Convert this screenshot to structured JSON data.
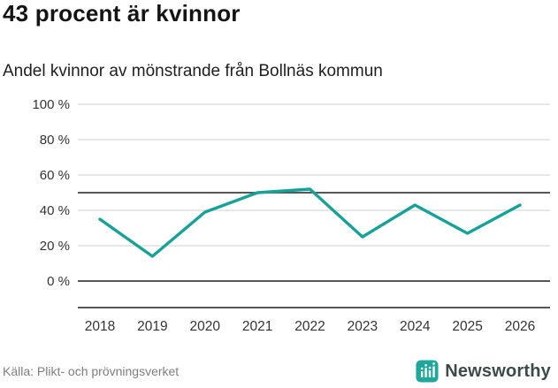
{
  "chart_data": {
    "type": "line",
    "title": "43 procent är kvinnor",
    "subtitle": "Andel kvinnor av mönstrande från Bollnäs kommun",
    "x": [
      "2018",
      "2019",
      "2020",
      "2021",
      "2022",
      "2023",
      "2024",
      "2025",
      "2026"
    ],
    "series": [
      {
        "name": "Andel kvinnor av mönstrande",
        "values": [
          35,
          14,
          39,
          50,
          52,
          25,
          43,
          27,
          43
        ]
      }
    ],
    "ylim": [
      0,
      100
    ],
    "yticks": [
      0,
      20,
      40,
      60,
      80,
      100
    ],
    "ytick_suffix": " %",
    "reference_line": 50,
    "grid": true,
    "legend": "none",
    "line_color": "#16A296",
    "grid_color": "#cfcfcf",
    "axis_color": "#3f3f3f",
    "tick_text_color": "#333333"
  },
  "footer": {
    "source": "Källa: Plikt- och prövningsverket",
    "brand": "Newsworthy",
    "brand_color": "#1FA79B"
  }
}
